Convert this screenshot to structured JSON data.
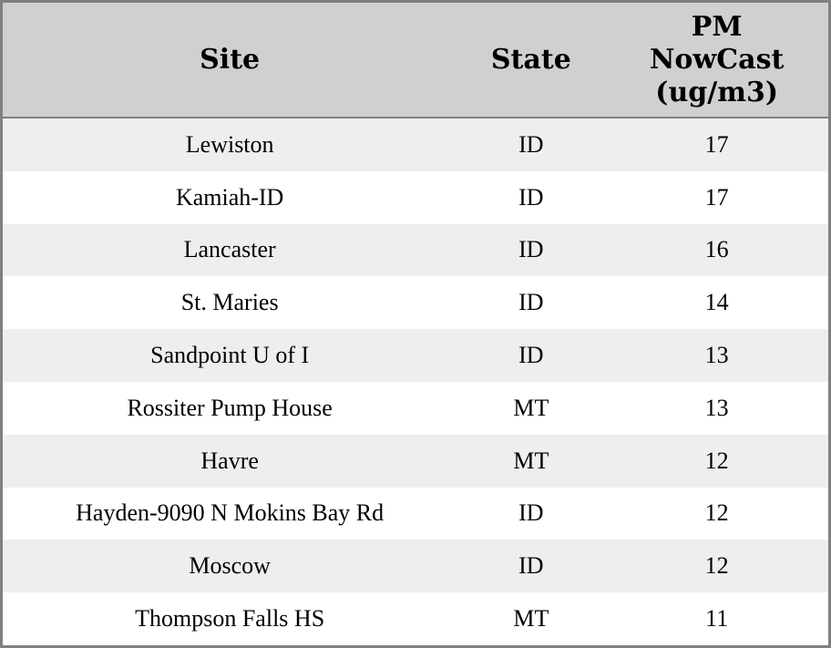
{
  "chart_data": {
    "type": "table",
    "title": "",
    "columns": [
      "Site",
      "State",
      "PM NowCast (ug/m3)"
    ],
    "rows": [
      [
        "Lewiston",
        "ID",
        17
      ],
      [
        "Kamiah-ID",
        "ID",
        17
      ],
      [
        "Lancaster",
        "ID",
        16
      ],
      [
        "St. Maries",
        "ID",
        14
      ],
      [
        "Sandpoint U of I",
        "ID",
        13
      ],
      [
        "Rossiter Pump House",
        "MT",
        13
      ],
      [
        "Havre",
        "MT",
        12
      ],
      [
        "Hayden-9090 N Mokins Bay Rd",
        "ID",
        12
      ],
      [
        "Moscow",
        "ID",
        12
      ],
      [
        "Thompson Falls HS",
        "MT",
        11
      ]
    ],
    "layout": {
      "grid": "off",
      "row_striping": "alternating",
      "alignment": "center"
    }
  },
  "colors": {
    "header_bg": "#d0d0d0",
    "row_stripe_bg": "#eeeeee",
    "row_bg": "#ffffff",
    "border": "#808080",
    "text": "#000000"
  }
}
